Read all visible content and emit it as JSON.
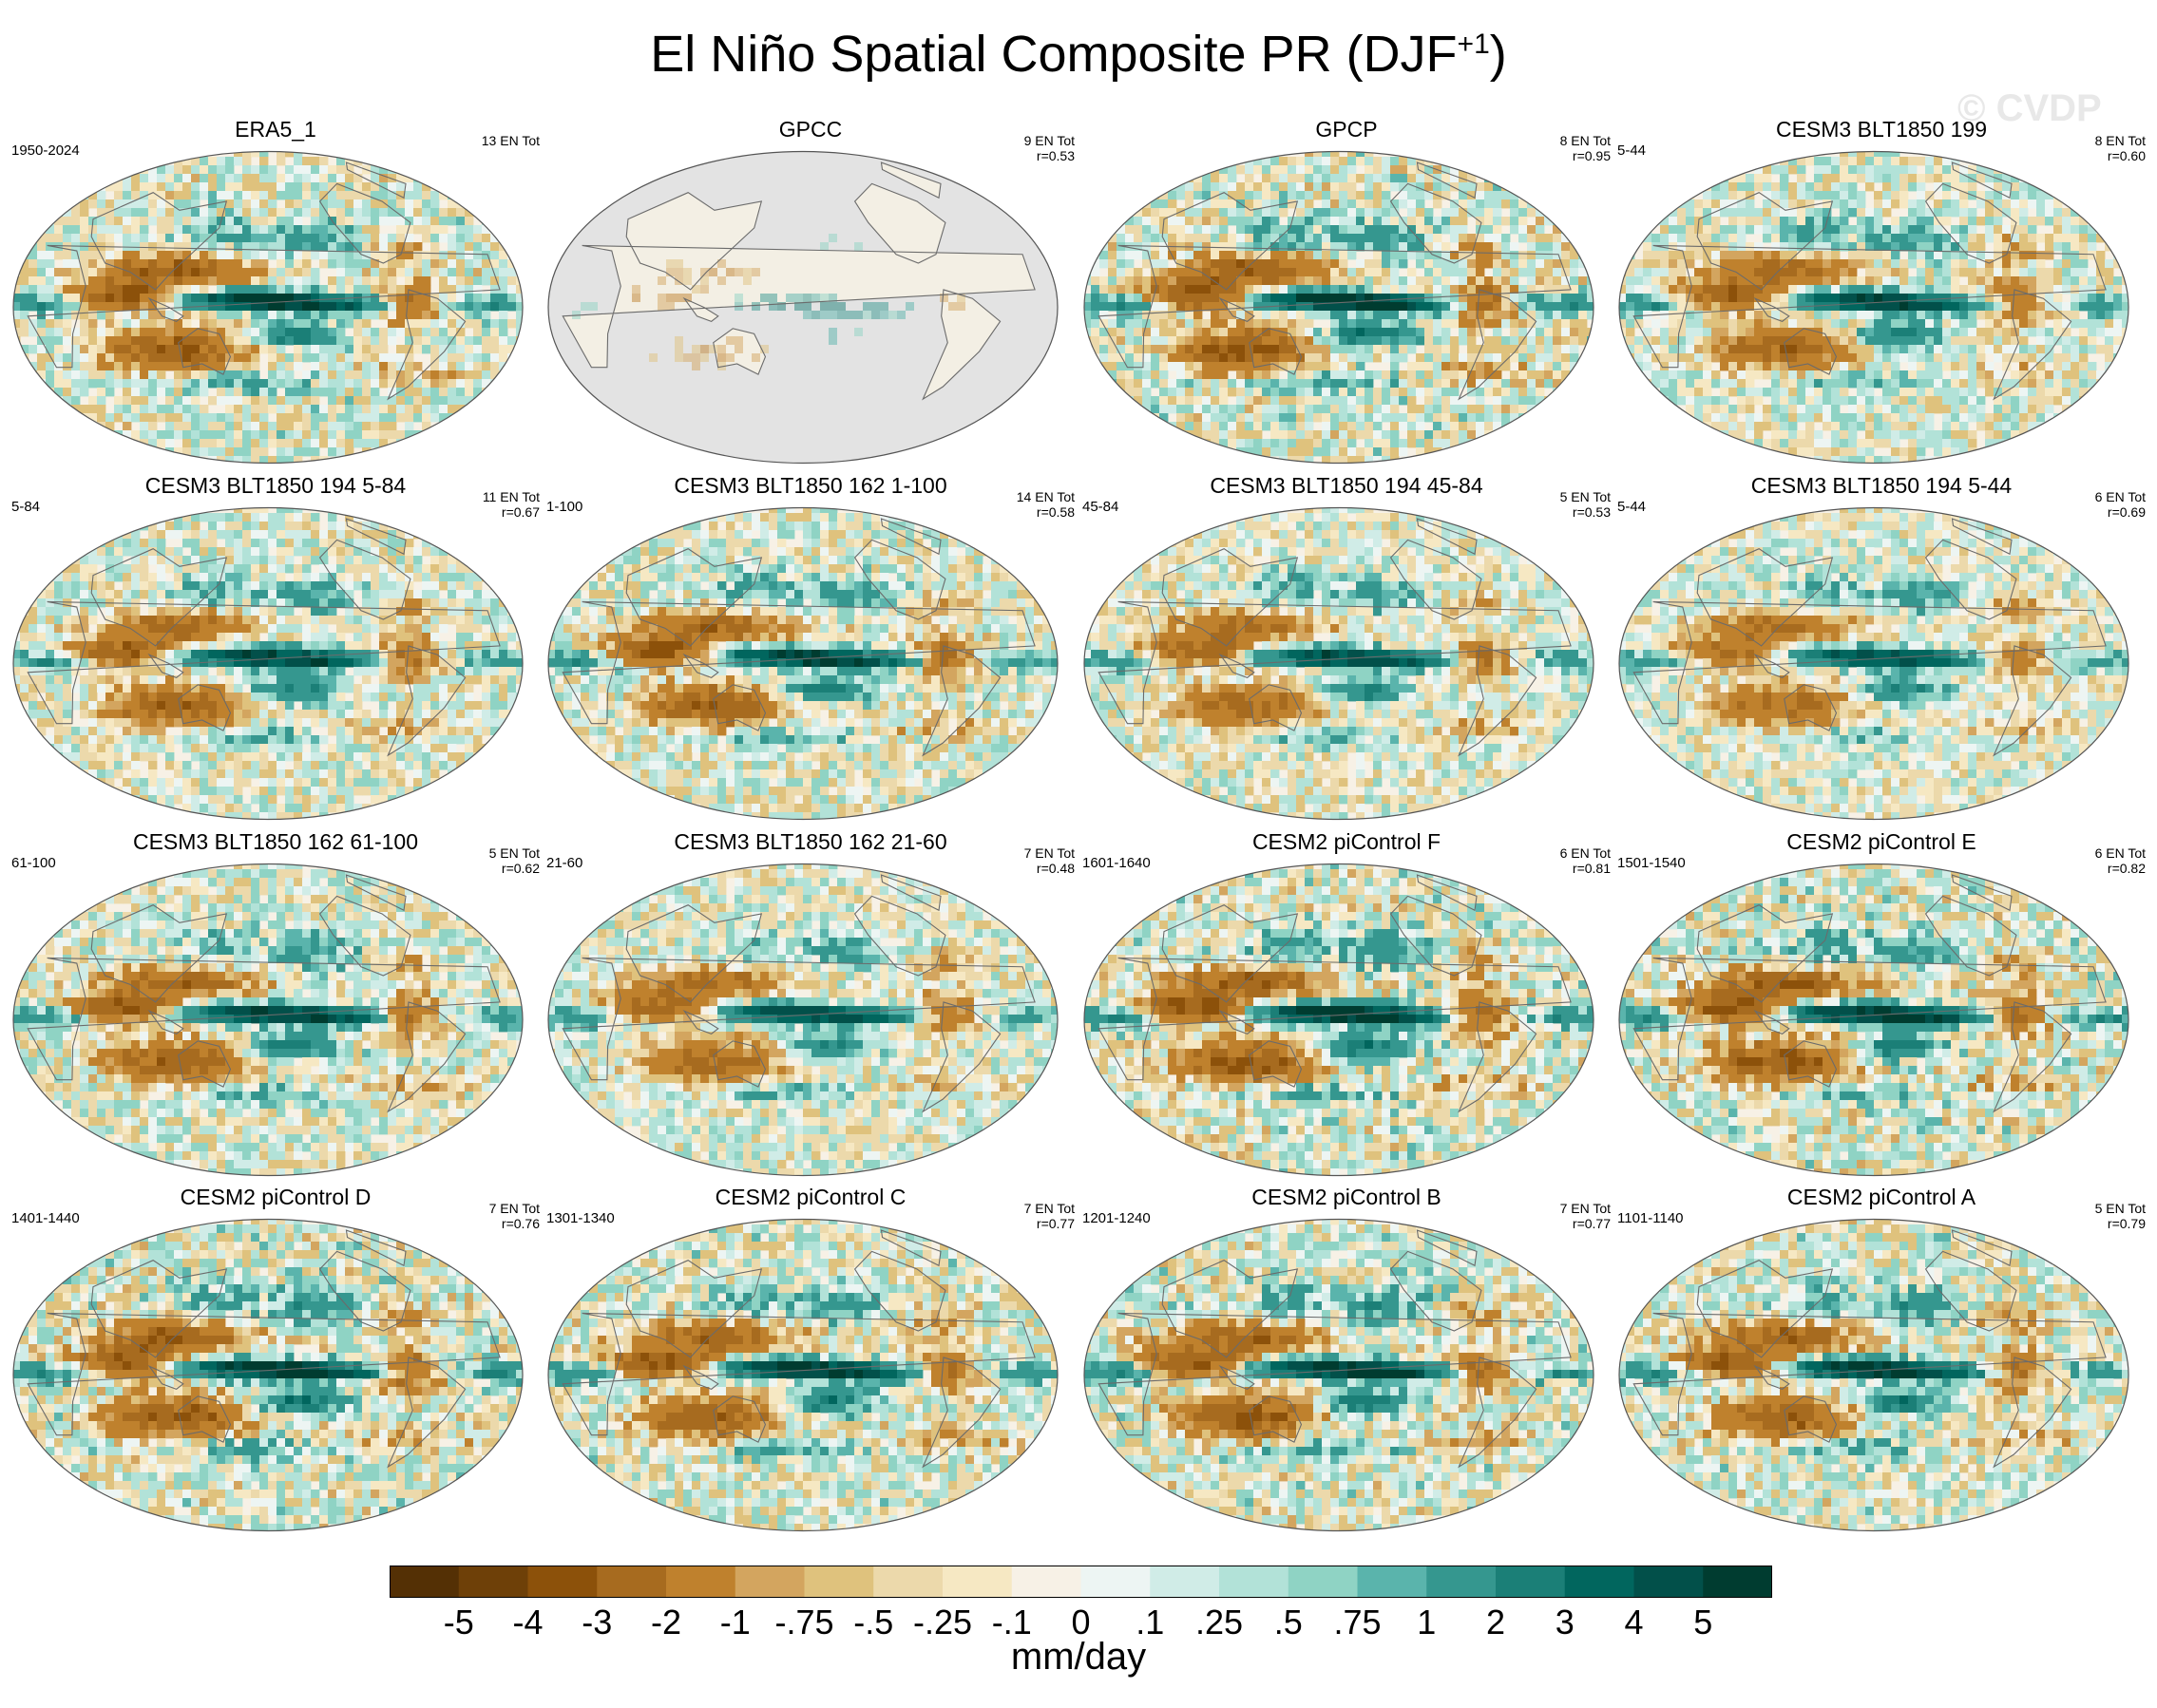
{
  "title": {
    "main": "El Niño Spatial Composite PR (DJF",
    "superscript": "+1",
    "close": ")"
  },
  "watermark": "© CVDP",
  "chart_data": {
    "type": "heatmap",
    "title": "El Niño Spatial Composite PR (DJF+1)",
    "projection": "Robinson (Pacific-centered)",
    "panels": [
      {
        "name": "ERA5_1",
        "years": "1950-2024",
        "events": "13 EN Tot",
        "r": "",
        "style": "obs",
        "intensity": 0.95
      },
      {
        "name": "GPCC",
        "years": "",
        "events": "9 EN Tot",
        "r": "r=0.53",
        "style": "land",
        "intensity": 0.6
      },
      {
        "name": "GPCP",
        "years": "",
        "events": "8 EN Tot",
        "r": "r=0.95",
        "style": "obs",
        "intensity": 1.0
      },
      {
        "name": "CESM3 BLT1850 199",
        "years": "5-44",
        "events": "8 EN Tot",
        "r": "r=0.60",
        "style": "model",
        "intensity": 0.85
      },
      {
        "name": "CESM3 BLT1850 194 5-84",
        "years": "5-84",
        "events": "11 EN Tot",
        "r": "r=0.67",
        "style": "model",
        "intensity": 0.85
      },
      {
        "name": "CESM3 BLT1850 162 1-100",
        "years": "1-100",
        "events": "14 EN Tot",
        "r": "r=0.58",
        "style": "model",
        "intensity": 0.9
      },
      {
        "name": "CESM3 BLT1850 194 45-84",
        "years": "45-84",
        "events": "5 EN Tot",
        "r": "r=0.53",
        "style": "model",
        "intensity": 0.8
      },
      {
        "name": "CESM3 BLT1850 194 5-44",
        "years": "5-44",
        "events": "6 EN Tot",
        "r": "r=0.69",
        "style": "model",
        "intensity": 0.75
      },
      {
        "name": "CESM3 BLT1850 162 61-100",
        "years": "61-100",
        "events": "5 EN Tot",
        "r": "r=0.62",
        "style": "model",
        "intensity": 0.9
      },
      {
        "name": "CESM3 BLT1850 162 21-60",
        "years": "21-60",
        "events": "7 EN Tot",
        "r": "r=0.48",
        "style": "model",
        "intensity": 0.8
      },
      {
        "name": "CESM2 piControl F",
        "years": "1601-1640",
        "events": "6 EN Tot",
        "r": "r=0.81",
        "style": "model",
        "intensity": 1.0
      },
      {
        "name": "CESM2 piControl E",
        "years": "1501-1540",
        "events": "6 EN Tot",
        "r": "r=0.82",
        "style": "model",
        "intensity": 1.0
      },
      {
        "name": "CESM2 piControl D",
        "years": "1401-1440",
        "events": "7 EN Tot",
        "r": "r=0.76",
        "style": "model",
        "intensity": 1.0
      },
      {
        "name": "CESM2 piControl C",
        "years": "1301-1340",
        "events": "7 EN Tot",
        "r": "r=0.77",
        "style": "model",
        "intensity": 0.95
      },
      {
        "name": "CESM2 piControl B",
        "years": "1201-1240",
        "events": "7 EN Tot",
        "r": "r=0.77",
        "style": "model",
        "intensity": 1.0
      },
      {
        "name": "CESM2 piControl A",
        "years": "1101-1140",
        "events": "5 EN Tot",
        "r": "r=0.79",
        "style": "model",
        "intensity": 0.95
      }
    ],
    "colorbar": {
      "unit": "mm/day",
      "tick_labels": [
        "-5",
        "-4",
        "-3",
        "-2",
        "-1",
        "-.75",
        "-.5",
        "-.25",
        "-.1",
        "0",
        ".1",
        ".25",
        ".5",
        ".75",
        "1",
        "2",
        "3",
        "4",
        "5"
      ],
      "colors": [
        "#543005",
        "#6e4008",
        "#8c510a",
        "#a76b1f",
        "#bf812d",
        "#d3a55f",
        "#dfc27d",
        "#ecd9ab",
        "#f6e8c3",
        "#f7f1e6",
        "#edf5f3",
        "#d0ece7",
        "#b2e2d8",
        "#8fd3c4",
        "#5ab4ac",
        "#35978f",
        "#1b7f77",
        "#01665e",
        "#02504a",
        "#003c30"
      ]
    }
  }
}
